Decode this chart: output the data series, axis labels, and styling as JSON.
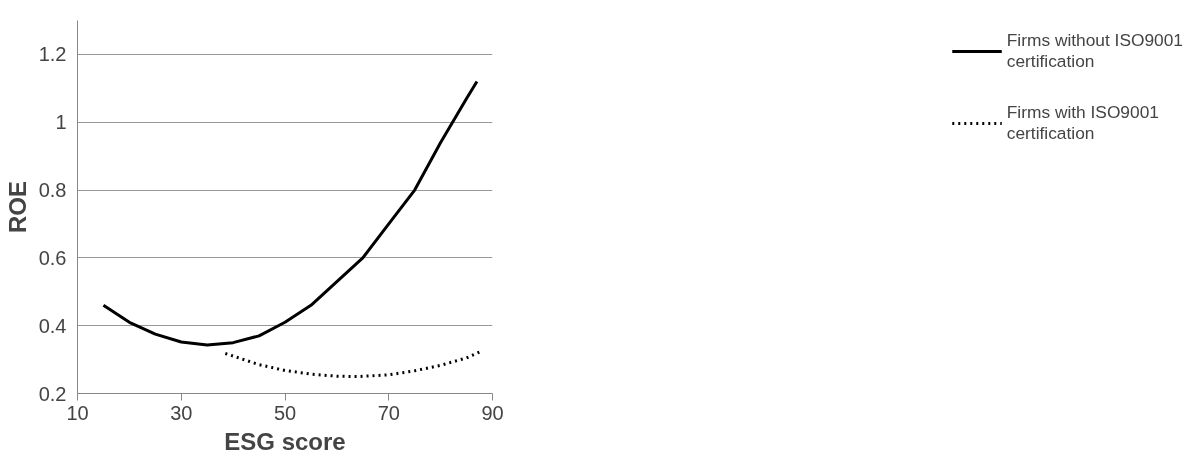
{
  "chart_data": {
    "type": "line",
    "xlabel": "ESG score",
    "ylabel": "ROE",
    "xlim": [
      10,
      90
    ],
    "xticks": [
      10,
      30,
      50,
      70,
      90
    ],
    "ylim": [
      0.2,
      1.3
    ],
    "yticks": [
      0.2,
      0.4,
      0.6,
      0.8,
      1,
      1.2
    ],
    "grid": "y",
    "legend": "right",
    "series": [
      {
        "name": "Firms without ISO9001 certification",
        "color": "#000000",
        "line_style": "solid",
        "x": [
          15,
          20,
          25,
          30,
          35,
          40,
          45,
          50,
          55,
          60,
          65,
          70,
          75,
          80,
          85,
          87
        ],
        "values": [
          0.46,
          0.41,
          0.375,
          0.352,
          0.343,
          0.35,
          0.37,
          0.41,
          0.46,
          0.53,
          0.6,
          0.7,
          0.8,
          0.94,
          1.07,
          1.12
        ]
      },
      {
        "name": "Firms with ISO9001 certification",
        "color": "#000000",
        "line_style": "dotted",
        "x": [
          38.5,
          45,
          50,
          55,
          60,
          64,
          70,
          75,
          80,
          85,
          88
        ],
        "values": [
          0.318,
          0.285,
          0.268,
          0.257,
          0.251,
          0.25,
          0.255,
          0.267,
          0.283,
          0.305,
          0.326
        ]
      }
    ]
  }
}
